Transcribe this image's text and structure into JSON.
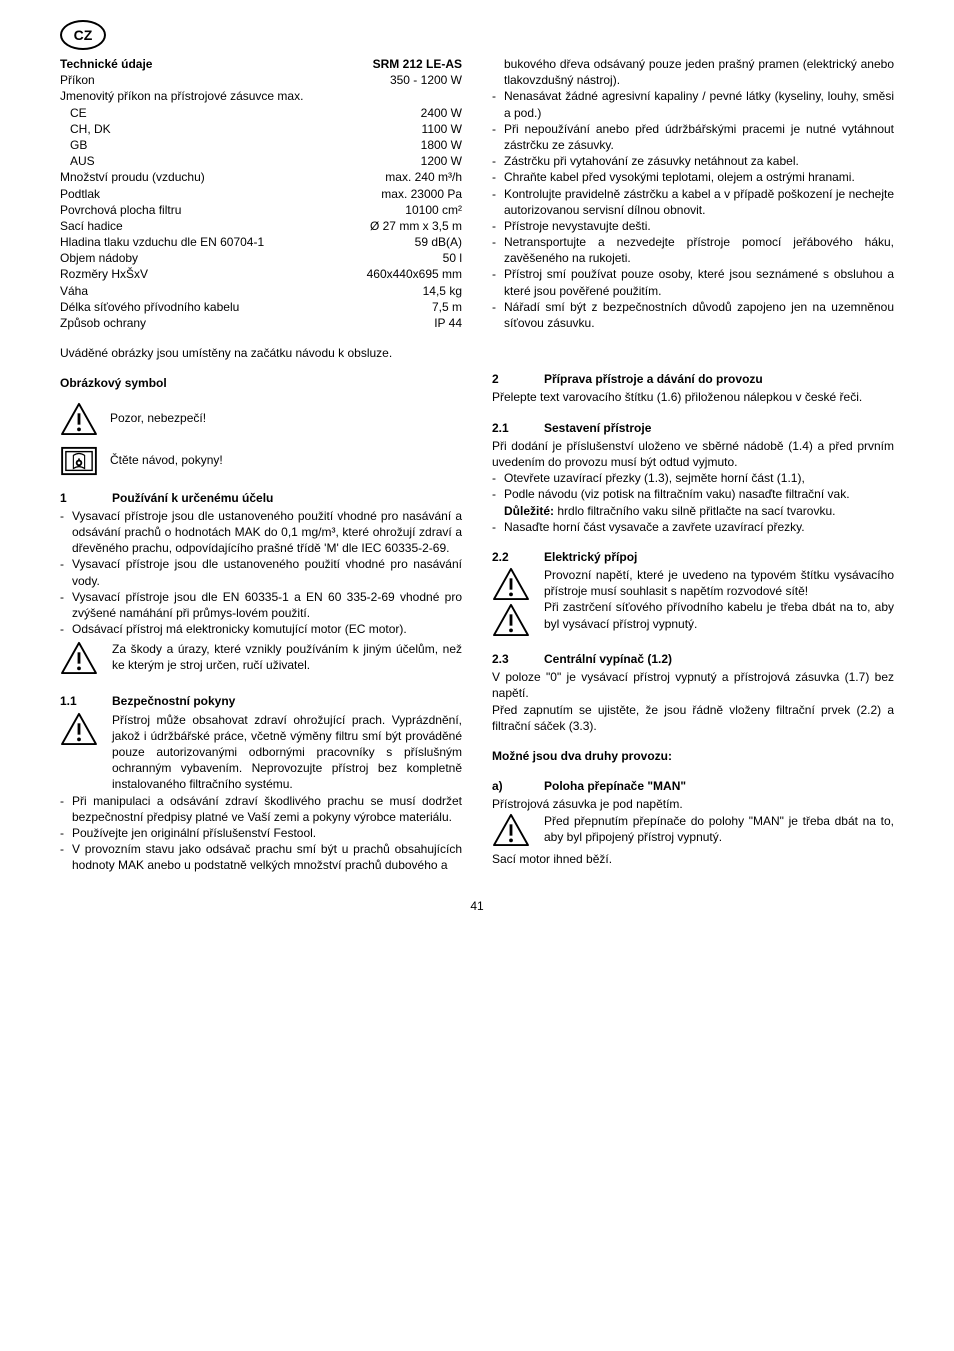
{
  "badge": "CZ",
  "left": {
    "title": "Technické údaje",
    "model": "SRM 212 LE-AS",
    "specs": [
      {
        "label": "Příkon",
        "value": "350 - 1200 W",
        "noindent": true
      },
      {
        "label": "Jmenovitý příkon na přístrojové zásuvce max.",
        "value": "",
        "noindent": true
      },
      {
        "label": "CE",
        "value": "2400 W"
      },
      {
        "label": "CH, DK",
        "value": "1100 W"
      },
      {
        "label": "GB",
        "value": "1800 W"
      },
      {
        "label": "AUS",
        "value": "1200 W"
      },
      {
        "label": "Množství proudu (vzduchu)",
        "value": "max. 240 m³/h",
        "noindent": true
      },
      {
        "label": "Podtlak",
        "value": "max. 23000 Pa",
        "noindent": true
      },
      {
        "label": "Povrchová plocha filtru",
        "value": "10100 cm²",
        "noindent": true
      },
      {
        "label": "Sací hadice",
        "value": "Ø 27 mm x 3,5 m",
        "noindent": true
      },
      {
        "label": "Hladina tlaku vzduchu dle EN 60704-1",
        "value": "59 dB(A)",
        "noindent": true
      },
      {
        "label": "Objem nádoby",
        "value": "50 l",
        "noindent": true
      },
      {
        "label": "Rozměry HxŠxV",
        "value": "460x440x695 mm",
        "noindent": true
      },
      {
        "label": "Váha",
        "value": "14,5 kg",
        "noindent": true
      },
      {
        "label": "Délka síťového přívodního kabelu",
        "value": "7,5 m",
        "noindent": true
      },
      {
        "label": "Způsob ochrany",
        "value": "IP 44",
        "noindent": true
      }
    ],
    "note": "Uváděné obrázky jsou umístěny na začátku návodu k obsluze.",
    "symbol_head": "Obrázkový symbol",
    "sym1": "Pozor, nebezpečí!",
    "sym2": "Čtěte návod, pokyny!",
    "sec1_num": "1",
    "sec1_title": "Používání k určenému účelu",
    "sec1_items": [
      "Vysavací přístroje jsou dle ustanoveného použití vhodné pro nasávání a odsávání prachů o hodnotách MAK do 0,1 mg/m³, které ohrožují zdraví a dřevěného prachu, odpovídajícího prašné třídě 'M' dle IEC 60335-2-69.",
      "Vysavací přístroje jsou dle ustanoveného použití vhodné pro nasávání vody.",
      "Vysavací přístroje jsou dle EN 60335-1 a EN 60 335-2-69 vhodné pro zvýšené namáhání při průmys-lovém použití.",
      "Odsávací přístroj má elektronicky komutující motor (EC motor)."
    ],
    "sec1_warn": "Za škody a úrazy, které vznikly používáním k jiným účelům, než ke kterým je stroj určen, ručí uživatel.",
    "sec11_num": "1.1",
    "sec11_title": "Bezpečnostní pokyny",
    "sec11_warn": "Přístroj může obsahovat zdraví ohrožující prach. Vyprázdnění, jakož i údržbářské práce, včetně výměny filtru smí být prováděné pouze autorizovanými odbornými pracovníky s příslušným ochranným vybavením. Neprovozujte přístroj bez kompletně instalovaného filtračního systému.",
    "sec11_items": [
      "Při manipulaci a odsávání zdraví škodlivého prachu se musí dodržet bezpečnostní předpisy platné ve Vaší zemi a pokyny výrobce materiálu.",
      "Používejte jen originální příslušenství Festool.",
      "V provozním stavu jako odsávač prachu smí být u prachů obsahujících hodnoty MAK anebo u podstatně velkých množství prachů dubového a"
    ]
  },
  "right": {
    "cont_para": "bukového dřeva odsávaný pouze jeden prašný pramen (elektrický anebo tlakovzdušný nástroj).",
    "cont_items": [
      "Nenasávat žádné agresivní kapaliny / pevné látky (kyseliny, louhy, směsi a pod.)",
      "Při nepoužívání anebo před údržbářskými pracemi je nutné vytáhnout zástrčku ze zásuvky.",
      "Zástrčku při vytahování ze zásuvky netáhnout za kabel.",
      "Chraňte kabel před vysokými teplotami, olejem a ostrými hranami.",
      "Kontrolujte pravidelně zástrčku a kabel a v případě poškození je nechejte autorizovanou servisní dílnou obnovit.",
      "Přístroje nevystavujte dešti.",
      "Netransportujte a nezvedejte přístroje pomocí jeřábového háku, zavěšeného na rukojeti.",
      "Přístroj smí používat pouze osoby, které jsou seznámené s obsluhou a které jsou pověřené použitím.",
      "Nářadí smí být z bezpečnostních důvodů zapojeno jen na uzemněnou síťovou zásuvku."
    ],
    "sec2_num": "2",
    "sec2_title": "Příprava přístroje a dávání do provozu",
    "sec2_para": "Přelepte text varovacího štítku (1.6) přiloženou nálepkou v české řeči.",
    "sec21_num": "2.1",
    "sec21_title": "Sestavení přístroje",
    "sec21_para": "Při dodání je příslušenství uloženo ve sběrné nádobě (1.4) a před prvním uvedením do provozu musí být odtud vyjmuto.",
    "sec21_items": [
      "Otevřete uzavírací přezky (1.3), sejměte horní část (1.1),",
      "Podle návodu (viz potisk na filtračním vaku) nasaďte filtrační vak."
    ],
    "sec21_bold": "Důležité:",
    "sec21_aftBold": " hrdlo filtračního vaku silně přitlačte na sací tvarovku.",
    "sec21_items2": [
      "Nasaďte horní část vysavače a zavřete uzavírací přezky."
    ],
    "sec22_num": "2.2",
    "sec22_title": "Elektrický přípoj",
    "sec22_warn1": "Provozní napětí, které je uvedeno na typovém štítku vysávacího přístroje musí souhlasit s napětím rozvodové sítě!",
    "sec22_warn2": "Při zastrčení síťového přívodního kabelu je třeba dbát na to, aby byl vysávací přístroj vypnutý.",
    "sec23_num": "2.3",
    "sec23_title": "Centrální vypínač (1.2)",
    "sec23_p1": "V poloze \"0\" je vysávací přístroj vypnutý a přístrojová zásuvka (1.7) bez napětí.",
    "sec23_p2": "Před zapnutím se ujistěte, že jsou řádně vloženy filtrační prvek (2.2) a filtrační sáček (3.3).",
    "sec23_modes": "Možné jsou dva druhy provozu:",
    "seca_num": "a)",
    "seca_title": "Poloha přepínače \"MAN\"",
    "seca_p": "Přístrojová zásuvka je pod napětím.",
    "seca_warn": "Před přepnutím přepínače do polohy \"MAN\" je třeba dbát na to, aby byl připojený přístroj vypnutý.",
    "seca_p2": "Sací motor ihned běží."
  },
  "pagenum": "41"
}
